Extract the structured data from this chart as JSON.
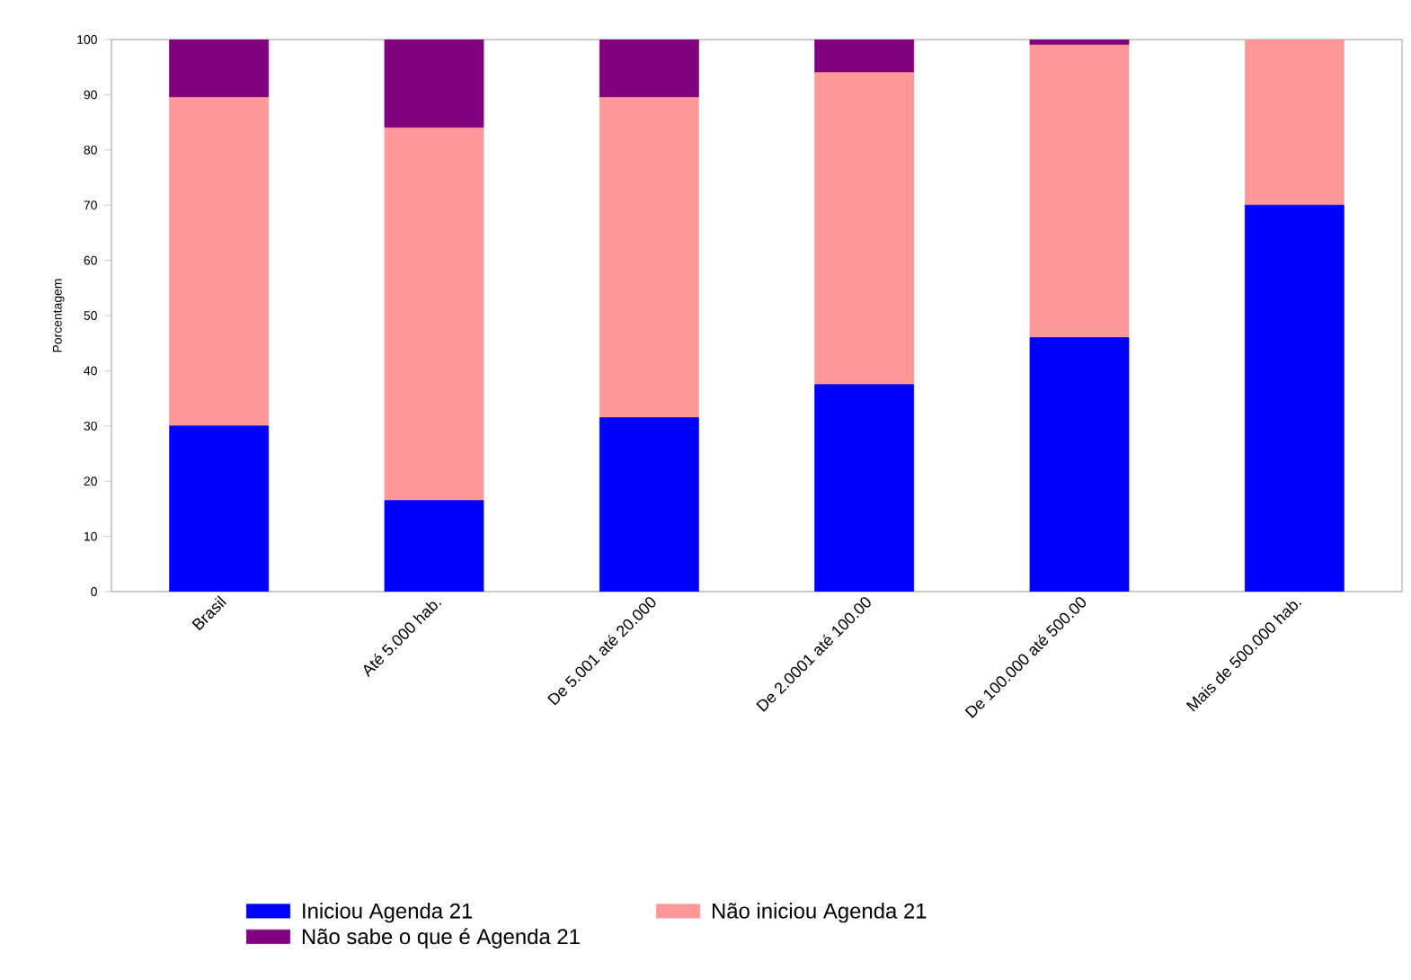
{
  "chart_data": {
    "type": "bar",
    "stacked": true,
    "ylabel": "Porcentagem",
    "categories": [
      "Brasil",
      "Até 5.000 hab.",
      "De 5.001 até 20.000",
      "De 2.0001 até 100.00",
      "De 100.000 até 500.00",
      "Mais de 500.000 hab."
    ],
    "series": [
      {
        "name": "Iniciou Agenda 21",
        "color": "#0000ff",
        "values": [
          30,
          16.5,
          31.5,
          37.5,
          46,
          70
        ]
      },
      {
        "name": "Não iniciou Agenda 21",
        "color": "#ff9999",
        "values": [
          59.5,
          67.5,
          58,
          56.5,
          53,
          30
        ]
      },
      {
        "name": "Não sabe o que é Agenda 21",
        "color": "#800080",
        "values": [
          10.5,
          16,
          10.5,
          6,
          1,
          0
        ]
      }
    ],
    "ylim": [
      0,
      100
    ],
    "yticks": [
      0,
      10,
      20,
      30,
      40,
      50,
      60,
      70,
      80,
      90,
      100
    ],
    "legend": "bottom"
  }
}
